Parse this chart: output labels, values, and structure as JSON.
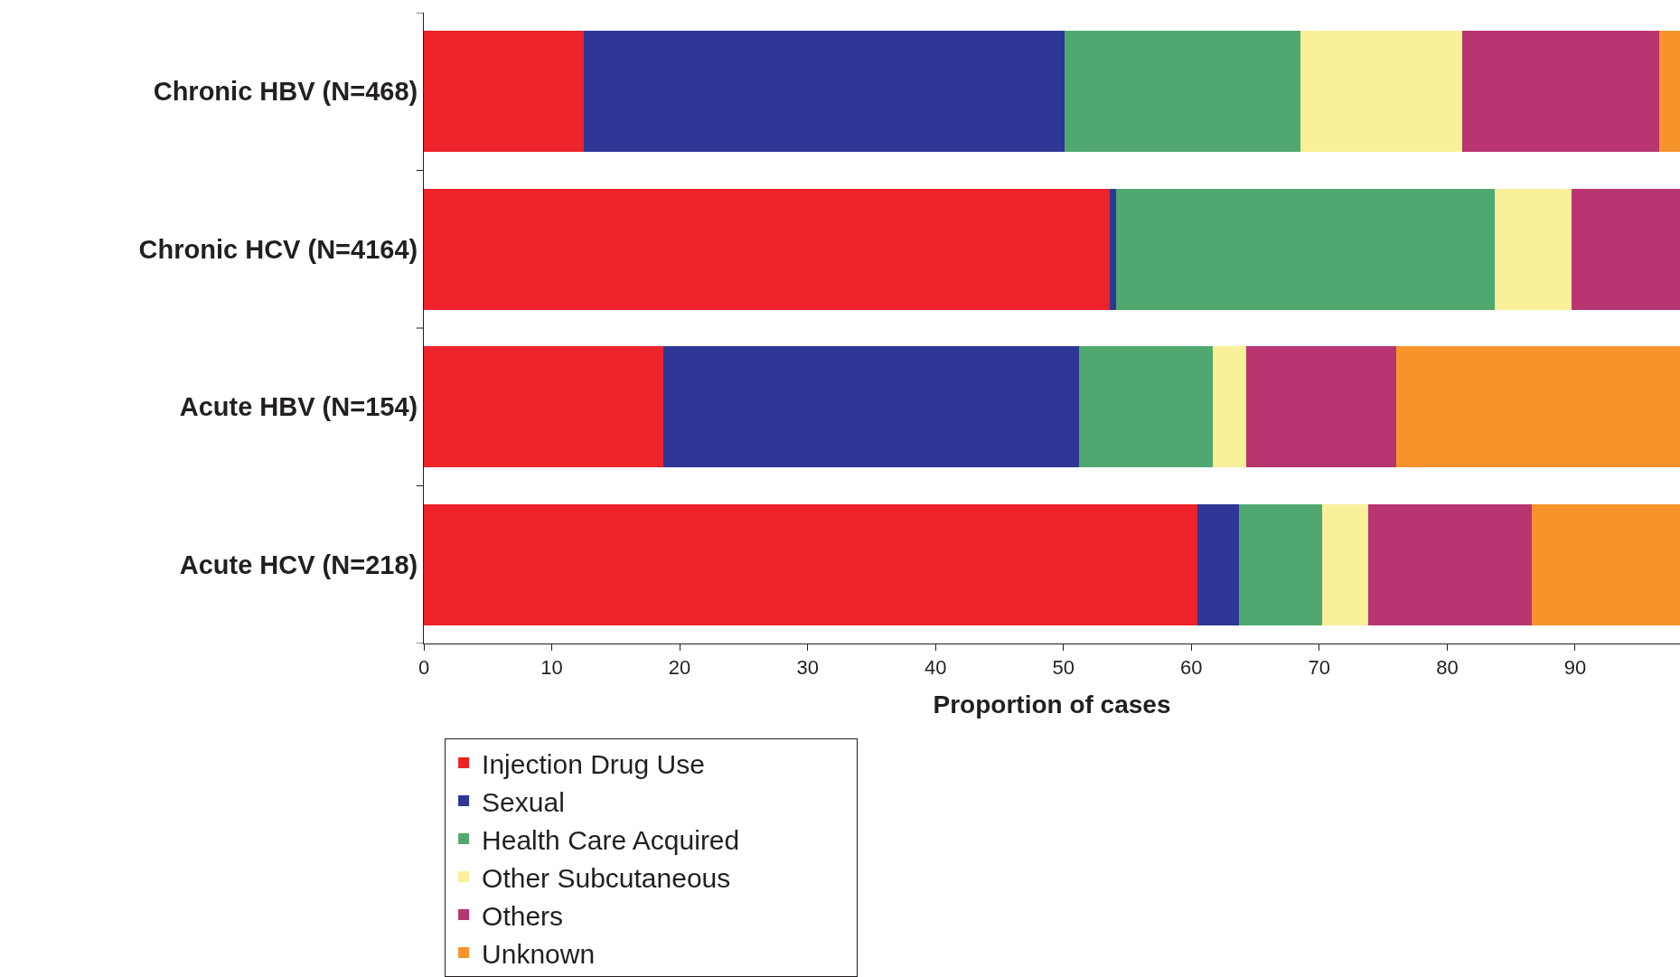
{
  "chart_data": {
    "type": "bar",
    "orientation": "horizontal",
    "stacked": true,
    "xlabel": "Proportion of cases",
    "categories": [
      "Chronic HBV (N=468)",
      "Chronic HCV (N=4164)",
      "Acute HBV (N=154)",
      "Acute HCV (N=218)"
    ],
    "series": [
      {
        "name": "Injection Drug Use",
        "color": "#ee2229",
        "values": [
          12.5,
          53.6,
          18.7,
          60.5
        ]
      },
      {
        "name": "Sexual",
        "color": "#2e3795",
        "values": [
          37.6,
          0.5,
          32.5,
          3.2
        ]
      },
      {
        "name": "Health Care Acquired",
        "color": "#4fa96f",
        "values": [
          18.4,
          29.6,
          10.5,
          6.5
        ]
      },
      {
        "name": "Other Subcutaneous",
        "color": "#f9f09a",
        "values": [
          12.7,
          6.0,
          2.6,
          3.6
        ]
      },
      {
        "name": "Others",
        "color": "#b83572",
        "values": [
          15.4,
          8.5,
          11.7,
          12.8
        ]
      },
      {
        "name": "Unknown",
        "color": "#f6932b",
        "values": [
          1.6,
          null,
          22.2,
          11.6
        ]
      }
    ],
    "xlim": [
      0,
      98.2
    ],
    "xticks": [
      0,
      10,
      20,
      30,
      40,
      50,
      60,
      70,
      80,
      90
    ],
    "legend": "bottom"
  }
}
